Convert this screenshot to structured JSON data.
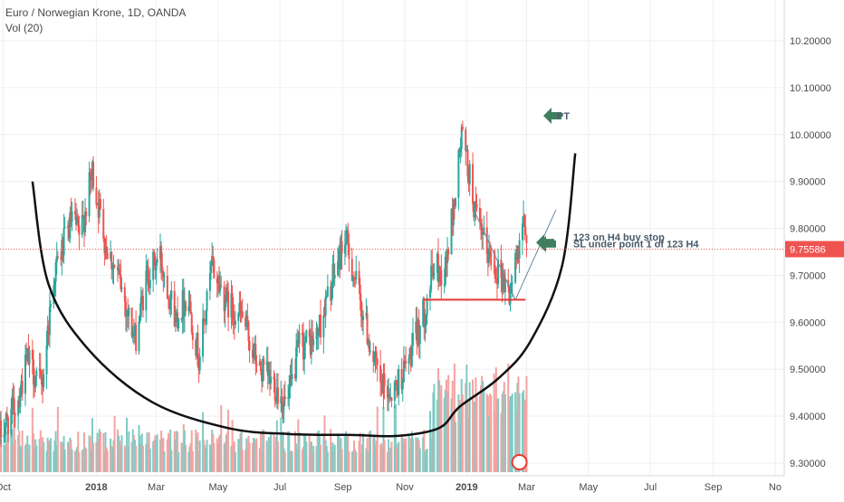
{
  "header": {
    "title": "Euro / Norwegian Krone, 1D, OANDA",
    "volume_label": "Vol (20)"
  },
  "colors": {
    "up": "#26a69a",
    "down": "#ef5350",
    "up_volume": "#80cbc4",
    "down_volume": "#f4a3a2",
    "last_price_line": "#ef5350",
    "last_price_badge": "#ef5350",
    "arrow": "#3d7f5f",
    "cup_curve": "#111111",
    "support_line": "#e53935",
    "trend_lines": "#6a86a3",
    "grid": "#eef0f3",
    "axis_text": "#4a4a4a"
  },
  "chart_data": {
    "type": "candlestick",
    "symbol": "EURNOK",
    "interval": "1D",
    "source": "OANDA",
    "price_axis": {
      "range": [
        9.28,
        10.3
      ],
      "ticks": [
        "10.20000",
        "10.10000",
        "10.00000",
        "9.90000",
        "9.80000",
        "9.70000",
        "9.60000",
        "9.50000",
        "9.40000",
        "9.30000"
      ],
      "last_price_label": "9.75586",
      "last_price": 9.75586
    },
    "time_axis": {
      "range": [
        "2017-09-28",
        "2019-11-10"
      ],
      "tick_labels": [
        "Oct",
        "2018",
        "Mar",
        "May",
        "Jul",
        "Sep",
        "Nov",
        "2019",
        "Mar",
        "May",
        "Jul",
        "Sep",
        "No"
      ],
      "tick_dates": [
        "2017-10-01",
        "2018-01-01",
        "2018-03-01",
        "2018-05-01",
        "2018-07-01",
        "2018-09-01",
        "2018-11-01",
        "2019-01-01",
        "2019-03-01",
        "2019-05-01",
        "2019-07-01",
        "2019-09-01",
        "2019-11-01"
      ]
    },
    "price_path": [
      [
        "2017-09-28",
        9.36
      ],
      [
        "2017-10-15",
        9.43
      ],
      [
        "2017-10-25",
        9.52
      ],
      [
        "2017-11-08",
        9.46
      ],
      [
        "2017-11-20",
        9.7
      ],
      [
        "2017-12-08",
        9.82
      ],
      [
        "2017-12-16",
        9.78
      ],
      [
        "2017-12-28",
        9.92
      ],
      [
        "2018-01-10",
        9.77
      ],
      [
        "2018-01-25",
        9.68
      ],
      [
        "2018-02-08",
        9.56
      ],
      [
        "2018-02-20",
        9.7
      ],
      [
        "2018-03-05",
        9.74
      ],
      [
        "2018-03-20",
        9.61
      ],
      [
        "2018-04-01",
        9.66
      ],
      [
        "2018-04-12",
        9.52
      ],
      [
        "2018-04-25",
        9.72
      ],
      [
        "2018-05-10",
        9.64
      ],
      [
        "2018-05-25",
        9.61
      ],
      [
        "2018-06-10",
        9.5
      ],
      [
        "2018-06-25",
        9.47
      ],
      [
        "2018-07-08",
        9.42
      ],
      [
        "2018-07-20",
        9.55
      ],
      [
        "2018-08-05",
        9.56
      ],
      [
        "2018-08-18",
        9.66
      ],
      [
        "2018-09-03",
        9.78
      ],
      [
        "2018-09-12",
        9.7
      ],
      [
        "2018-09-25",
        9.58
      ],
      [
        "2018-10-08",
        9.46
      ],
      [
        "2018-10-20",
        9.45
      ],
      [
        "2018-11-05",
        9.52
      ],
      [
        "2018-11-20",
        9.62
      ],
      [
        "2018-11-30",
        9.72
      ],
      [
        "2018-12-10",
        9.7
      ],
      [
        "2018-12-20",
        9.86
      ],
      [
        "2018-12-27",
        10.0
      ],
      [
        "2019-01-03",
        9.92
      ],
      [
        "2019-01-12",
        9.8
      ],
      [
        "2019-01-24",
        9.74
      ],
      [
        "2019-02-04",
        9.7
      ],
      [
        "2019-02-12",
        9.66
      ],
      [
        "2019-02-18",
        9.72
      ],
      [
        "2019-02-24",
        9.82
      ],
      [
        "2019-03-02",
        9.756
      ]
    ],
    "volume_level_bounds": [
      0,
      1
    ],
    "annotations": {
      "arrow_labels": [
        "PT",
        "123 on H4 buy stop",
        "SL under point 1 of 123 H4"
      ],
      "pt_level": 10.04,
      "buy_stop_level": 9.77,
      "stop_loss_level": 9.74,
      "support_level": 9.648,
      "support_start": "2018-11-19",
      "support_end": "2019-02-28",
      "cup_curve": [
        [
          "2017-10-30",
          9.9
        ],
        [
          "2017-11-15",
          9.68
        ],
        [
          "2017-12-25",
          9.54
        ],
        [
          "2018-02-25",
          9.43
        ],
        [
          "2018-05-10",
          9.375
        ],
        [
          "2018-07-10",
          9.362
        ],
        [
          "2018-09-10",
          9.36
        ],
        [
          "2018-10-25",
          9.358
        ],
        [
          "2018-12-05",
          9.375
        ],
        [
          "2018-12-25",
          9.42
        ],
        [
          "2019-02-01",
          9.48
        ],
        [
          "2019-03-05",
          9.56
        ],
        [
          "2019-04-05",
          9.72
        ],
        [
          "2019-04-18",
          9.96
        ]
      ],
      "trend_lines": [
        [
          [
            "2019-01-08",
            9.84
          ],
          [
            "2019-02-18",
            9.648
          ]
        ],
        [
          [
            "2019-02-18",
            9.648
          ],
          [
            "2019-03-30",
            9.84
          ]
        ]
      ]
    }
  }
}
